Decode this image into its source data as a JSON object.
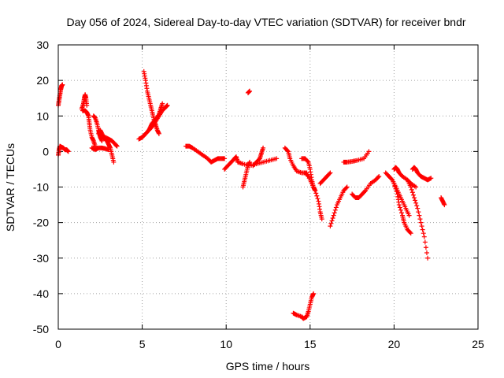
{
  "chart_data": {
    "type": "scatter",
    "title": "Day 056 of 2024, Sidereal Day-to-day VTEC variation (SDTVAR) for receiver bndr",
    "xlabel": "GPS time / hours",
    "ylabel": "SDTVAR / TECUs",
    "xlim": [
      0,
      25
    ],
    "ylim": [
      -50,
      30
    ],
    "xticks": [
      0,
      5,
      10,
      15,
      20,
      25
    ],
    "yticks": [
      -50,
      -40,
      -30,
      -20,
      -10,
      0,
      10,
      20,
      30
    ],
    "grid": true,
    "marker": "+",
    "color": "#ff0000",
    "segments": [
      {
        "x": [
          0.0,
          0.05,
          0.1,
          0.15,
          0.2,
          0.25
        ],
        "y": [
          13,
          14.5,
          16,
          17.5,
          18.5,
          18.8
        ]
      },
      {
        "x": [
          0.0,
          0.05,
          0.1,
          0.2,
          0.3,
          0.4,
          0.5,
          0.6
        ],
        "y": [
          -1,
          0.5,
          1.5,
          1.2,
          1.0,
          0.5,
          0.5,
          0
        ]
      },
      {
        "x": [
          1.4,
          1.5,
          1.55,
          1.6,
          1.65,
          1.7
        ],
        "y": [
          12,
          13.5,
          15,
          16,
          15,
          13
        ]
      },
      {
        "x": [
          1.45,
          1.6,
          1.7,
          1.8,
          1.85,
          1.9,
          2.0,
          2.1,
          2.2
        ],
        "y": [
          11.5,
          11.5,
          11,
          10,
          8,
          6,
          4,
          3,
          1.5
        ]
      },
      {
        "x": [
          2.0,
          2.2,
          2.4,
          2.6,
          2.8,
          3.0
        ],
        "y": [
          1,
          0.5,
          1,
          1,
          0.8,
          0.5
        ]
      },
      {
        "x": [
          2.1,
          2.2,
          2.3,
          2.4,
          2.45,
          2.5,
          2.6
        ],
        "y": [
          10,
          9.5,
          8,
          6,
          5,
          4,
          3
        ]
      },
      {
        "x": [
          2.4,
          2.5,
          2.6,
          2.7,
          2.8,
          2.9,
          3.0,
          3.1,
          3.2,
          3.3
        ],
        "y": [
          5,
          6,
          5,
          4,
          3.5,
          3,
          2,
          1,
          -1,
          -3
        ]
      },
      {
        "x": [
          2.8,
          3.0,
          3.2,
          3.4,
          3.5
        ],
        "y": [
          4,
          3.5,
          3,
          2,
          1.5
        ]
      },
      {
        "x": [
          4.8,
          5.0,
          5.2,
          5.4,
          5.6,
          5.8,
          6.0,
          6.2,
          6.4,
          6.5
        ],
        "y": [
          3.5,
          4,
          5,
          6,
          7,
          8.5,
          10,
          11.5,
          12.5,
          13
        ]
      },
      {
        "x": [
          5.0,
          5.2,
          5.4,
          5.5,
          5.6,
          5.8,
          6.0,
          6.1,
          6.2
        ],
        "y": [
          4,
          5,
          6,
          7,
          8,
          9,
          10.5,
          12,
          13.5
        ]
      },
      {
        "x": [
          5.1,
          5.2,
          5.3,
          5.4,
          5.5,
          5.6,
          5.7,
          5.8,
          5.9,
          6.0
        ],
        "y": [
          22.5,
          20,
          17,
          15,
          13,
          11,
          9,
          7.5,
          6,
          5
        ]
      },
      {
        "x": [
          7.6,
          7.8,
          8.0,
          8.3,
          8.6,
          8.9,
          9.1,
          9.3,
          9.5,
          9.7,
          9.9
        ],
        "y": [
          1.5,
          1.5,
          1,
          0,
          -1,
          -2,
          -3,
          -2.5,
          -2,
          -2,
          -2
        ]
      },
      {
        "x": [
          9.9,
          10.1,
          10.3,
          10.5,
          10.6,
          10.7
        ],
        "y": [
          -5,
          -4,
          -3,
          -2,
          -1.5,
          -3
        ]
      },
      {
        "x": [
          11.3,
          11.4
        ],
        "y": [
          16.5,
          17
        ]
      },
      {
        "x": [
          11.0,
          11.1,
          11.2,
          11.3,
          11.4
        ],
        "y": [
          -10,
          -8,
          -6,
          -4,
          -3
        ]
      },
      {
        "x": [
          10.7,
          11.0,
          11.4,
          11.8,
          12.2,
          12.6,
          13.0
        ],
        "y": [
          -3,
          -3.5,
          -4,
          -3.5,
          -3,
          -2.5,
          -2
        ]
      },
      {
        "x": [
          11.6,
          11.8,
          12.0,
          12.1,
          12.2
        ],
        "y": [
          -4,
          -3,
          -2,
          -0.5,
          1
        ]
      },
      {
        "x": [
          13.5,
          13.7,
          13.8,
          14.0,
          14.2,
          14.5,
          14.8
        ],
        "y": [
          1,
          0,
          -2,
          -4,
          -5.5,
          -6,
          -6
        ]
      },
      {
        "x": [
          14.5,
          14.7,
          14.9,
          15.0,
          15.1,
          15.2,
          15.3
        ],
        "y": [
          -2,
          -2,
          -3,
          -5,
          -8,
          -10,
          -11
        ]
      },
      {
        "x": [
          14.7,
          14.9,
          15.1,
          15.3,
          15.5,
          15.6,
          15.7
        ],
        "y": [
          -6,
          -7,
          -9,
          -11,
          -14,
          -17,
          -19
        ]
      },
      {
        "x": [
          14.0,
          14.2,
          14.5,
          14.6,
          14.8,
          14.9,
          15.0,
          15.1,
          15.2
        ],
        "y": [
          -45.5,
          -46,
          -46.5,
          -47,
          -46.5,
          -45,
          -43,
          -41,
          -40
        ]
      },
      {
        "x": [
          15.6,
          15.8,
          16.0,
          16.2
        ],
        "y": [
          -9,
          -8,
          -7,
          -6
        ]
      },
      {
        "x": [
          16.2,
          16.4,
          16.6,
          16.8,
          17.0,
          17.2
        ],
        "y": [
          -21,
          -18,
          -15,
          -13,
          -11,
          -10
        ]
      },
      {
        "x": [
          17.0,
          17.2,
          17.5,
          17.8,
          18.2,
          18.5
        ],
        "y": [
          -3,
          -3,
          -2.8,
          -2.5,
          -2,
          0
        ]
      },
      {
        "x": [
          17.5,
          17.7,
          17.9,
          18.1,
          18.3,
          18.6,
          18.9,
          19.1
        ],
        "y": [
          -12,
          -13,
          -13,
          -12,
          -11,
          -9,
          -8,
          -7
        ]
      },
      {
        "x": [
          19.5,
          19.7,
          19.9,
          20.1,
          20.3,
          20.5,
          20.7,
          20.9
        ],
        "y": [
          -6,
          -7,
          -8,
          -10,
          -12,
          -14,
          -16,
          -18
        ]
      },
      {
        "x": [
          20.0,
          20.2,
          20.3,
          20.5,
          20.6,
          20.8,
          21.0
        ],
        "y": [
          -9,
          -12,
          -15,
          -18,
          -20,
          -22,
          -23
        ]
      },
      {
        "x": [
          20.0,
          20.1,
          20.2,
          20.3,
          20.5,
          20.8,
          21.0,
          21.3
        ],
        "y": [
          -5,
          -4.5,
          -5,
          -6,
          -7,
          -8,
          -9,
          -10
        ]
      },
      {
        "x": [
          20.8,
          21.0,
          21.2,
          21.4,
          21.6,
          21.8,
          22.0
        ],
        "y": [
          -8,
          -10,
          -13,
          -16,
          -20,
          -24,
          -30
        ]
      },
      {
        "x": [
          21.1,
          21.2,
          21.3,
          21.4,
          21.6,
          21.8,
          22.0,
          22.2
        ],
        "y": [
          -5,
          -4.5,
          -5,
          -6,
          -7,
          -7.5,
          -8,
          -7.5
        ]
      },
      {
        "x": [
          22.8,
          22.9,
          23.0
        ],
        "y": [
          -13,
          -14,
          -15
        ]
      }
    ]
  }
}
